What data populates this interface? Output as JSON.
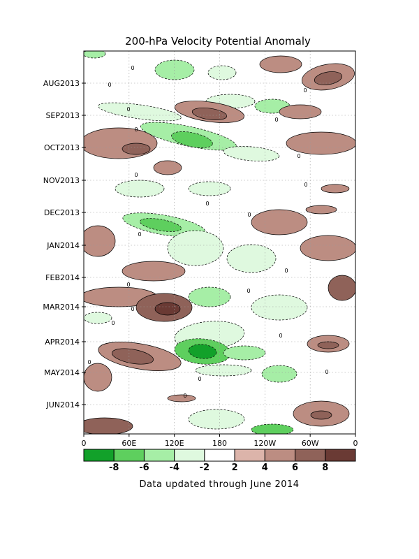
{
  "chart_data": {
    "type": "heatmap",
    "title": "200-hPa Velocity Potential Anomaly",
    "xlabel": "",
    "ylabel": "",
    "x_ticks": [
      "0",
      "60E",
      "120E",
      "180",
      "120W",
      "60W",
      "0"
    ],
    "y_ticks": [
      "AUG2013",
      "SEP2013",
      "OCT2013",
      "NOV2013",
      "DEC2013",
      "JAN2014",
      "FEB2014",
      "MAR2014",
      "APR2014",
      "MAY2014",
      "JUN2014"
    ],
    "colorbar": {
      "ticks": [
        "-8",
        "-6",
        "-4",
        "-2",
        "2",
        "4",
        "6",
        "8"
      ],
      "colors": [
        "#12a12a",
        "#5ecf5e",
        "#a6eea6",
        "#dff9df",
        "#ffffff",
        "#dcb4aa",
        "#bc8d82",
        "#8f6259",
        "#6a3a34"
      ]
    },
    "grid": true,
    "contour_label": "0",
    "note": "Data updated through June 2014"
  }
}
